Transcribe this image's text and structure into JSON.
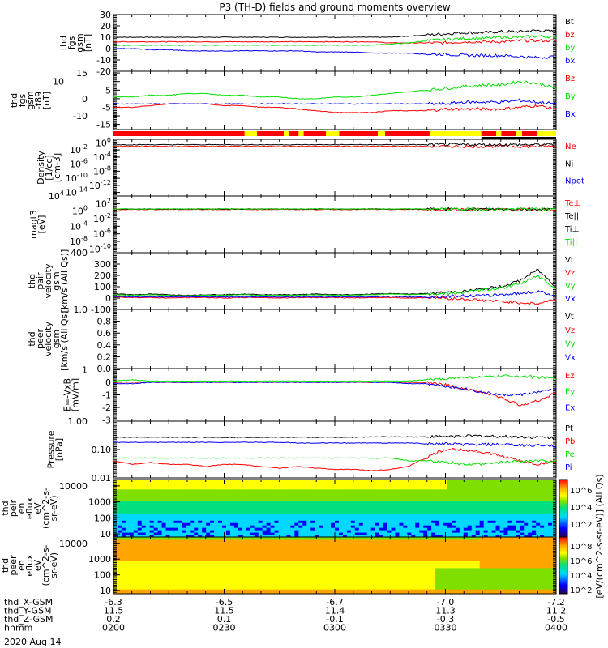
{
  "title": "P3 (TH-D) fields and ground moments overview",
  "date": "2020 Aug 14",
  "colors": {
    "black": "#000000",
    "red": "#ff0000",
    "green": "#00e000",
    "blue": "#0000ff"
  },
  "footer": {
    "rows": [
      {
        "label": "thd_X-GSM",
        "values": [
          "-6.3",
          "-6.5",
          "-6.7",
          "-7.0",
          "-7.2"
        ]
      },
      {
        "label": "thd_Y-GSM",
        "values": [
          "11.5",
          "11.5",
          "11.4",
          "11.3",
          "11.2"
        ]
      },
      {
        "label": "thd_Z-GSM",
        "values": [
          "0.2",
          "0.1",
          "-0.1",
          "-0.3",
          "-0.5"
        ]
      },
      {
        "label": "hhmm",
        "values": [
          "0200",
          "0230",
          "0300",
          "0330",
          "0400"
        ]
      }
    ]
  },
  "colorbar": {
    "label": "[eV/(cm^2-s-sr-eV)] (All Qs)",
    "ticks": [
      "10^6",
      "10^4",
      "10^2"
    ],
    "ticks2": [
      "10^8",
      "10^6",
      "10^4",
      "10^2"
    ]
  },
  "chart_data": [
    {
      "type": "line",
      "ylabel": [
        "thd",
        "fgs",
        "gsm",
        "[nT]"
      ],
      "scale": "lin",
      "ylim": [
        -20,
        30
      ],
      "ticks": [
        "30",
        "20",
        "10",
        "0",
        "-10",
        "-20"
      ],
      "tickvals": [
        30,
        20,
        10,
        0,
        -10,
        -20
      ],
      "series": [
        {
          "name": "Bt",
          "color": "#000000",
          "values": [
            10,
            10,
            10,
            10,
            10,
            10,
            10,
            10,
            10,
            10,
            10,
            10,
            10,
            10,
            10,
            10,
            11,
            12,
            13,
            14,
            14,
            15,
            15,
            16,
            15
          ]
        },
        {
          "name": "bz",
          "color": "#ff0000",
          "values": [
            6,
            6,
            6,
            6,
            6,
            6,
            6,
            6,
            6,
            6,
            6,
            6,
            6,
            6,
            6,
            5,
            5,
            5,
            5,
            6,
            6,
            6,
            7,
            7,
            7
          ]
        },
        {
          "name": "by",
          "color": "#00e000",
          "values": [
            3,
            3,
            3,
            3,
            3,
            3,
            3,
            3,
            3,
            3,
            3,
            3,
            3,
            3,
            3,
            4,
            5,
            7,
            8,
            9,
            9,
            10,
            10,
            11,
            10
          ]
        },
        {
          "name": "bx",
          "color": "#0000ff",
          "values": [
            0,
            0,
            -1,
            -1,
            -2,
            -2,
            -2,
            -2,
            -2,
            -2,
            -2,
            -3,
            -3,
            -3,
            -4,
            -4,
            -4,
            -5,
            -5,
            -6,
            -6,
            -6,
            -7,
            -8,
            -7
          ]
        }
      ]
    },
    {
      "type": "line",
      "ylabel": [
        "thd",
        "fgs",
        "gsm",
        "-t89",
        "[nT]"
      ],
      "scale": "lin",
      "ylim": [
        -18,
        16
      ],
      "ticks": [
        "15",
        "10",
        "5",
        "0",
        "-5",
        "-10",
        "-15"
      ],
      "tickvals": [
        15,
        10,
        5,
        0,
        -5,
        -10,
        -15
      ],
      "series": [
        {
          "name": "Bz",
          "color": "#ff0000",
          "values": [
            -5,
            -5,
            -4,
            -3,
            -3,
            -3,
            -4,
            -4,
            -5,
            -5,
            -6,
            -7,
            -8,
            -8,
            -8,
            -7,
            -7,
            -7,
            -6,
            -6,
            -6,
            -6,
            -5,
            -4,
            -6
          ]
        },
        {
          "name": "By",
          "color": "#00e000",
          "values": [
            1,
            1,
            2,
            2,
            3,
            3,
            2,
            2,
            1,
            1,
            0,
            0,
            1,
            1,
            2,
            3,
            4,
            5,
            6,
            7,
            8,
            8,
            10,
            9,
            6
          ]
        },
        {
          "name": "Bx",
          "color": "#0000ff",
          "values": [
            -3,
            -3,
            -3,
            -3,
            -3,
            -3,
            -3,
            -3,
            -3,
            -3,
            -3,
            -3,
            -3,
            -3,
            -3,
            -3,
            -3,
            -3,
            -3,
            -2,
            -2,
            -2,
            -1,
            -2,
            -3
          ]
        }
      ]
    },
    {
      "type": "line",
      "ylabel": [
        "Density",
        "[1/cc]",
        "[cm-3]"
      ],
      "scale": "log",
      "ylim": [
        -15,
        1
      ],
      "ticks": [
        "10^0",
        "10^-2",
        "10^-4",
        "10^-6",
        "10^-8",
        "10^-10",
        "10^-12",
        "10^-14"
      ],
      "tickvals": [
        0,
        -2,
        -4,
        -6,
        -8,
        -10,
        -12,
        -14
      ],
      "series": [
        {
          "name": "Ne",
          "color": "#ff0000",
          "values": [
            0.1,
            0.1,
            0.1,
            0.1,
            0.1,
            0.1,
            0.1,
            0.1,
            0.1,
            0.1,
            0.1,
            0.1,
            0.1,
            0.1,
            0.1,
            0.1,
            0.1,
            0.1,
            0.1,
            0.1,
            0.1,
            0.1,
            0.1,
            0.1,
            0.1
          ]
        },
        {
          "name": "Ni",
          "color": "#000000",
          "values": [
            0.3,
            0.3,
            0.3,
            0.3,
            0.3,
            0.3,
            0.3,
            0.3,
            0.3,
            0.3,
            0.3,
            0.3,
            0.3,
            0.3,
            0.3,
            0.3,
            0.3,
            0.3,
            0.3,
            0.3,
            0.3,
            0.3,
            0.3,
            0.3,
            0.3
          ]
        },
        {
          "name": "Npot",
          "color": "#0000ff",
          "values": []
        }
      ]
    },
    {
      "type": "line",
      "ylabel": [
        "magt3",
        "[eV]"
      ],
      "scale": "log",
      "ylim": [
        -11,
        4
      ],
      "ticks": [
        "10^4",
        "10^2",
        "10^0",
        "10^-2",
        "10^-4",
        "10^-6",
        "10^-8",
        "10^-10"
      ],
      "tickvals": [
        4,
        2,
        0,
        -2,
        -4,
        -6,
        -8,
        -10
      ],
      "series": [
        {
          "name": "Te⊥",
          "color": "#ff0000",
          "values": [
            2.7,
            2.7,
            2.7,
            2.7,
            2.7,
            2.7,
            2.7,
            2.7,
            2.7,
            2.7,
            2.7,
            2.7,
            2.7,
            2.7,
            2.7,
            2.7,
            2.7,
            2.7,
            2.7,
            2.7,
            2.7,
            2.7,
            2.7,
            2.7,
            2.7
          ]
        },
        {
          "name": "Te||",
          "color": "#000000",
          "values": [
            3.5,
            3.5,
            3.5,
            3.5,
            3.5,
            3.5,
            3.5,
            3.5,
            3.5,
            3.5,
            3.5,
            3.5,
            3.5,
            3.5,
            3.5,
            3.5,
            3.5,
            3.4,
            3.4,
            3.4,
            3.3,
            3.3,
            3.3,
            3.3,
            3.3
          ]
        },
        {
          "name": "Ti⊥",
          "color": "#000000",
          "values": []
        },
        {
          "name": "Ti||",
          "color": "#00e000",
          "values": [
            3.7,
            3.7,
            3.7,
            3.7,
            3.7,
            3.7,
            3.7,
            3.7,
            3.7,
            3.7,
            3.7,
            3.7,
            3.7,
            3.7,
            3.7,
            3.7,
            3.7,
            3.6,
            3.5,
            3.4,
            3.4,
            3.4,
            3.4,
            3.4,
            3.4
          ]
        }
      ]
    },
    {
      "type": "line",
      "ylabel": [
        "thd",
        "pair",
        "velocity",
        "gsm",
        "[km/s (All Qs)]"
      ],
      "scale": "lin",
      "ylim": [
        -100,
        400
      ],
      "ticks": [
        "400",
        "300",
        "200",
        "100",
        "0",
        "-100"
      ],
      "tickvals": [
        400,
        300,
        200,
        100,
        0,
        -100
      ],
      "series": [
        {
          "name": "Vt",
          "color": "#000000",
          "values": [
            40,
            30,
            35,
            30,
            25,
            30,
            30,
            35,
            30,
            30,
            30,
            35,
            30,
            30,
            35,
            40,
            35,
            40,
            50,
            60,
            80,
            100,
            150,
            250,
            100
          ]
        },
        {
          "name": "Vz",
          "color": "#ff0000",
          "values": [
            10,
            5,
            5,
            0,
            5,
            5,
            0,
            5,
            5,
            0,
            5,
            5,
            5,
            0,
            5,
            5,
            0,
            5,
            0,
            -10,
            -20,
            -30,
            -40,
            -50,
            -10
          ]
        },
        {
          "name": "Vy",
          "color": "#00e000",
          "values": [
            30,
            25,
            30,
            25,
            20,
            25,
            25,
            30,
            25,
            25,
            25,
            30,
            25,
            25,
            30,
            35,
            30,
            35,
            40,
            50,
            70,
            90,
            120,
            200,
            80
          ]
        },
        {
          "name": "Vx",
          "color": "#0000ff",
          "values": [
            15,
            10,
            10,
            10,
            10,
            10,
            10,
            10,
            10,
            10,
            10,
            10,
            10,
            10,
            10,
            15,
            10,
            10,
            15,
            20,
            20,
            30,
            40,
            60,
            20
          ]
        }
      ]
    },
    {
      "type": "line",
      "ylabel": [
        "thd",
        "peer",
        "velocity",
        "gsm",
        "[km/s (All Qs)]"
      ],
      "scale": "lin",
      "ylim": [
        0,
        1
      ],
      "ticks": [
        "1.0",
        "0.8",
        "0.6",
        "0.4",
        "0.2",
        "0.0"
      ],
      "tickvals": [
        1,
        0.8,
        0.6,
        0.4,
        0.2,
        0
      ],
      "series": [
        {
          "name": "Vt",
          "color": "#000000",
          "values": []
        },
        {
          "name": "Vz",
          "color": "#ff0000",
          "values": []
        },
        {
          "name": "Vy",
          "color": "#00e000",
          "values": []
        },
        {
          "name": "Vx",
          "color": "#0000ff",
          "values": []
        }
      ]
    },
    {
      "type": "line",
      "ylabel": [
        "E=-VxB",
        "[mV/m]"
      ],
      "scale": "lin",
      "ylim": [
        -3.1,
        1.1
      ],
      "ticks": [
        "1",
        "0",
        "-1",
        "-2",
        "-3"
      ],
      "tickvals": [
        1,
        0,
        -1,
        -2,
        -3
      ],
      "series": [
        {
          "name": "Ez",
          "color": "#ff0000",
          "values": [
            0,
            0,
            0,
            0,
            0,
            0,
            0,
            0,
            0,
            0,
            0,
            0,
            0,
            0,
            0,
            0,
            0,
            0,
            -0.2,
            -0.5,
            -0.8,
            -1.2,
            -1.8,
            -1.5,
            -0.8
          ]
        },
        {
          "name": "Ey",
          "color": "#00e000",
          "values": [
            0.1,
            0.2,
            0.1,
            0.1,
            0.1,
            0.1,
            0.1,
            0.1,
            0.1,
            0.1,
            0.1,
            0.1,
            0.1,
            0.1,
            0.1,
            0.1,
            0.1,
            0.2,
            0.3,
            0.4,
            0.4,
            0.5,
            0.5,
            0.4,
            0.3
          ]
        },
        {
          "name": "Ex",
          "color": "#0000ff",
          "values": [
            -0.1,
            -0.1,
            0,
            0,
            0,
            0,
            0,
            0,
            0,
            0,
            0,
            0,
            0,
            0,
            0,
            0,
            -0.1,
            -0.1,
            -0.3,
            -0.5,
            -0.8,
            -1,
            -1,
            -0.8,
            -0.5
          ]
        }
      ]
    },
    {
      "type": "line",
      "ylabel": [
        "Pressure",
        "[nPa]"
      ],
      "scale": "log",
      "ylim": [
        -2,
        0
      ],
      "ticks": [
        "1.00",
        "0.10",
        "0.01"
      ],
      "tickvals": [
        0,
        -1,
        -2
      ],
      "series": [
        {
          "name": "Pt",
          "color": "#000000",
          "values": [
            0.27,
            0.27,
            0.27,
            0.27,
            0.27,
            0.27,
            0.27,
            0.27,
            0.27,
            0.27,
            0.27,
            0.27,
            0.27,
            0.27,
            0.28,
            0.28,
            0.28,
            0.28,
            0.29,
            0.3,
            0.3,
            0.29,
            0.28,
            0.27,
            0.26
          ]
        },
        {
          "name": "Pb",
          "color": "#ff0000",
          "values": [
            0.04,
            0.03,
            0.035,
            0.03,
            0.03,
            0.025,
            0.03,
            0.03,
            0.025,
            0.022,
            0.025,
            0.022,
            0.02,
            0.02,
            0.018,
            0.02,
            0.025,
            0.05,
            0.1,
            0.1,
            0.08,
            0.06,
            0.04,
            0.03,
            0.04
          ]
        },
        {
          "name": "Pe",
          "color": "#00e000",
          "values": [
            0.05,
            0.05,
            0.05,
            0.05,
            0.05,
            0.05,
            0.05,
            0.05,
            0.05,
            0.05,
            0.05,
            0.05,
            0.05,
            0.05,
            0.05,
            0.05,
            0.04,
            0.04,
            0.035,
            0.03,
            0.03,
            0.035,
            0.04,
            0.04,
            0.04
          ]
        },
        {
          "name": "Pi",
          "color": "#0000ff",
          "values": [
            0.18,
            0.18,
            0.18,
            0.18,
            0.18,
            0.18,
            0.18,
            0.18,
            0.18,
            0.18,
            0.17,
            0.17,
            0.17,
            0.17,
            0.17,
            0.17,
            0.17,
            0.16,
            0.16,
            0.15,
            0.15,
            0.15,
            0.14,
            0.14,
            0.13
          ]
        }
      ]
    },
    {
      "type": "heatmap",
      "ylabel": [
        "thd",
        "peir",
        "en",
        "eflux",
        "eV",
        "(cm^2-s-",
        "sr-eV)"
      ],
      "ticks": [
        "10000",
        "1000",
        "100",
        "10"
      ],
      "tickvals": [
        4,
        3,
        2,
        1
      ],
      "ylim": [
        0.8,
        4.4
      ]
    },
    {
      "type": "heatmap",
      "ylabel": [
        "thd",
        "peer",
        "en",
        "eflux",
        "eV",
        "(cm^2-s-",
        "sr-eV)"
      ],
      "ticks": [
        "10000",
        "1000",
        "100",
        "10"
      ],
      "tickvals": [
        4,
        3,
        2,
        1
      ],
      "ylim": [
        0.8,
        4.4
      ]
    }
  ]
}
